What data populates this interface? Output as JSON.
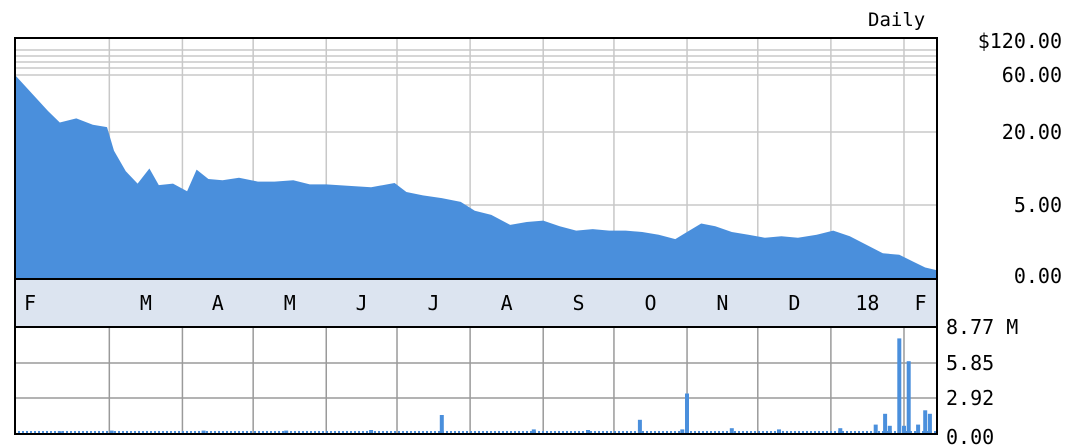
{
  "chart_data": [
    {
      "type": "area",
      "frequency_label": "Daily",
      "y_scale": "log",
      "y_ticks": [
        {
          "value": 120,
          "label": "$120.00"
        },
        {
          "value": 60,
          "label": "60.00"
        },
        {
          "value": 20,
          "label": "20.00"
        },
        {
          "value": 5,
          "label": "5.00"
        },
        {
          "value": 0,
          "label": "0.00"
        }
      ],
      "x_tick_labels": [
        "F",
        "M",
        "A",
        "M",
        "J",
        "J",
        "A",
        "S",
        "O",
        "N",
        "D",
        "18",
        "F"
      ],
      "color": "#4a8fdc",
      "series": [
        {
          "x": [
            "2017-02-01",
            "2017-02-03",
            "2017-02-08",
            "2017-02-15",
            "2017-02-22",
            "2017-02-28",
            "2017-03-03",
            "2017-03-08",
            "2017-03-13",
            "2017-03-18",
            "2017-03-22",
            "2017-03-28",
            "2017-04-03",
            "2017-04-07",
            "2017-04-12",
            "2017-04-18",
            "2017-04-25",
            "2017-05-03",
            "2017-05-10",
            "2017-05-18",
            "2017-05-25",
            "2017-06-01",
            "2017-06-10",
            "2017-06-20",
            "2017-06-30",
            "2017-07-05",
            "2017-07-12",
            "2017-07-20",
            "2017-07-28",
            "2017-08-03",
            "2017-08-10",
            "2017-08-18",
            "2017-08-25",
            "2017-09-01",
            "2017-09-08",
            "2017-09-15",
            "2017-09-22",
            "2017-09-29",
            "2017-10-06",
            "2017-10-13",
            "2017-10-20",
            "2017-10-27",
            "2017-11-01",
            "2017-11-07",
            "2017-11-13",
            "2017-11-20",
            "2017-11-27",
            "2017-12-04",
            "2017-12-11",
            "2017-12-18",
            "2017-12-26",
            "2018-01-02",
            "2018-01-09",
            "2018-01-16",
            "2018-01-23",
            "2018-01-30",
            "2018-02-05",
            "2018-02-10",
            "2018-02-14"
          ],
          "values": [
            60,
            30,
            24,
            26,
            23,
            22,
            14,
            9.5,
            7.5,
            10,
            7.3,
            7.5,
            6.5,
            9.8,
            8.2,
            8.0,
            8.4,
            7.8,
            7.8,
            8.0,
            7.4,
            7.4,
            7.2,
            7.0,
            7.6,
            6.4,
            6.0,
            5.7,
            5.3,
            4.6,
            4.3,
            3.6,
            3.8,
            3.9,
            3.5,
            3.2,
            3.3,
            3.2,
            3.2,
            3.1,
            2.9,
            2.6,
            3.1,
            3.7,
            3.5,
            3.1,
            2.9,
            2.7,
            2.8,
            2.7,
            2.9,
            3.2,
            2.8,
            2.2,
            1.6,
            1.5,
            1.0,
            0.6,
            0.4
          ]
        }
      ]
    },
    {
      "type": "bar",
      "y_ticks": [
        {
          "value": 8.77,
          "label": "8.77 M"
        },
        {
          "value": 5.85,
          "label": "5.85"
        },
        {
          "value": 2.92,
          "label": "2.92"
        },
        {
          "value": 0,
          "label": "0.00"
        }
      ],
      "color": "#4a8fdc",
      "series": [
        {
          "x": [
            "2017-02-08",
            "2017-03-02",
            "2017-04-10",
            "2017-05-15",
            "2017-06-20",
            "2017-07-20",
            "2017-08-28",
            "2017-09-20",
            "2017-10-12",
            "2017-10-30",
            "2017-11-01",
            "2017-11-20",
            "2017-12-10",
            "2018-01-05",
            "2018-01-20",
            "2018-01-24",
            "2018-01-26",
            "2018-01-30",
            "2018-02-01",
            "2018-02-03",
            "2018-02-07",
            "2018-02-10",
            "2018-02-12"
          ],
          "values": [
            0.15,
            0.2,
            0.2,
            0.2,
            0.25,
            1.5,
            0.3,
            0.25,
            1.1,
            0.3,
            3.3,
            0.4,
            0.3,
            0.4,
            0.7,
            1.6,
            0.6,
            7.9,
            0.6,
            6.0,
            0.7,
            1.9,
            1.6
          ]
        }
      ]
    }
  ]
}
